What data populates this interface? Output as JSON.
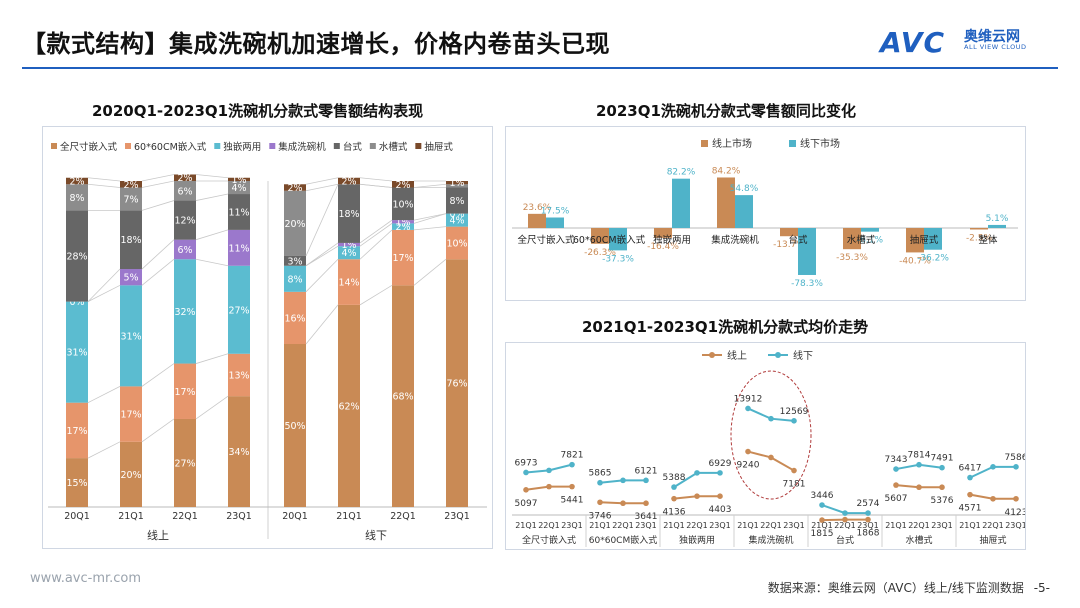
{
  "title": "【款式结构】集成洗碗机加速增长，价格内卷苗头已现",
  "logo": {
    "brand": "AVC",
    "cn": "奥维云网",
    "en": "ALL VIEW CLOUD"
  },
  "footer": {
    "website": "www.avc-mr.com",
    "source": "数据来源：奥维云网（AVC）线上/线下监测数据",
    "page": "-5-"
  },
  "colors": {
    "全尺寸嵌入式": "#c98a55",
    "60*60CM嵌入式": "#e6956b",
    "独嵌两用": "#5bbcd0",
    "集成洗碗机": "#9b78cc",
    "台式": "#666666",
    "水槽式": "#8c8c8c",
    "抽屉式": "#7a4a2a",
    "online": "#c98a55",
    "offline": "#4fb3c9"
  },
  "chart_data": [
    {
      "type": "bar",
      "stacked": true,
      "title": "2020Q1-2023Q1洗碗机分款式零售额结构表现",
      "legend_position": "top",
      "groups": [
        "线上",
        "线下"
      ],
      "categories": [
        "20Q1",
        "21Q1",
        "22Q1",
        "23Q1",
        "20Q1",
        "21Q1",
        "22Q1",
        "23Q1"
      ],
      "series": [
        {
          "name": "全尺寸嵌入式",
          "values": [
            15,
            20,
            27,
            34,
            50,
            62,
            68,
            76
          ]
        },
        {
          "name": "60*60CM嵌入式",
          "values": [
            17,
            17,
            17,
            13,
            16,
            14,
            17,
            10
          ]
        },
        {
          "name": "独嵌两用",
          "values": [
            31,
            31,
            32,
            27,
            8,
            4,
            2,
            4
          ]
        },
        {
          "name": "集成洗碗机",
          "values": [
            0,
            5,
            6,
            11,
            0,
            1,
            1,
            0
          ]
        },
        {
          "name": "台式",
          "values": [
            28,
            18,
            12,
            11,
            3,
            18,
            10,
            8
          ]
        },
        {
          "name": "水槽式",
          "values": [
            8,
            7,
            6,
            4,
            20,
            0,
            0,
            1
          ]
        },
        {
          "name": "抽屉式",
          "values": [
            2,
            2,
            2,
            1,
            2,
            2,
            2,
            1
          ]
        }
      ],
      "labels": [
        [
          "15%",
          "17%",
          "31%",
          "0%",
          "28%",
          "8%",
          "2%"
        ],
        [
          "20%",
          "17%",
          "31%",
          "5%",
          "18%",
          "7%",
          "2%"
        ],
        [
          "27%",
          "17%",
          "32%",
          "6%",
          "12%",
          "6%",
          "2%"
        ],
        [
          "34%",
          "13%",
          "27%",
          "11%",
          "11%",
          "4%",
          "1%"
        ],
        [
          "50%",
          "16%",
          "8%",
          "",
          "3%",
          "20%",
          "2%"
        ],
        [
          "62%",
          "14%",
          "4%",
          "1%",
          "18%",
          "",
          "2%"
        ],
        [
          "68%",
          "17%",
          "2%",
          "1%",
          "10%",
          "",
          "2%"
        ],
        [
          "76%",
          "10%",
          "4%",
          "0%",
          "8%",
          "",
          "1%"
        ]
      ],
      "ylim": [
        0,
        100
      ]
    },
    {
      "type": "bar",
      "title": "2023Q1洗碗机分款式零售额同比变化",
      "legend_position": "top",
      "categories": [
        "全尺寸嵌入式",
        "60*60CM嵌入式",
        "独嵌两用",
        "集成洗碗机",
        "台式",
        "水槽式",
        "抽屉式",
        "整体"
      ],
      "series": [
        {
          "name": "线上市场",
          "values": [
            23.6,
            -26.3,
            -16.4,
            84.2,
            -13.7,
            -35.3,
            -40.7,
            -2.5
          ]
        },
        {
          "name": "线下市场",
          "values": [
            17.5,
            -37.3,
            82.2,
            54.8,
            -78.3,
            -6.1,
            -36.2,
            5.1
          ]
        }
      ],
      "value_labels": {
        "线上市场": [
          "23.6%",
          "-26.3%",
          "-16.4%",
          "84.2%",
          "-13.7%",
          "-35.3%",
          "-40.7%",
          "-2.5%"
        ],
        "线下市场": [
          "17.5%",
          "-37.3%",
          "82.2%",
          "54.8%",
          "-78.3%",
          "-6.1%",
          "-36.2%",
          "5.1%"
        ]
      }
    },
    {
      "type": "line",
      "title": "2021Q1-2023Q1洗碗机分款式均价走势",
      "legend_position": "top",
      "groups": [
        "全尺寸嵌入式",
        "60*60CM嵌入式",
        "独嵌两用",
        "集成洗碗机",
        "台式",
        "水槽式",
        "抽屉式"
      ],
      "x": [
        "21Q1",
        "22Q1",
        "23Q1"
      ],
      "series": [
        {
          "name": "线上",
          "values": [
            [
              5097,
              5441,
              5441
            ],
            [
              3746,
              3641,
              3641
            ],
            [
              4136,
              4403,
              4403
            ],
            [
              9240,
              8600,
              7181
            ],
            [
              1815,
              1868,
              1868
            ],
            [
              5607,
              5376,
              5376
            ],
            [
              4571,
              4123,
              4123
            ]
          ]
        },
        {
          "name": "线下",
          "values": [
            [
              6973,
              7200,
              7821
            ],
            [
              5865,
              6121,
              6121
            ],
            [
              5388,
              6929,
              6929
            ],
            [
              13912,
              12800,
              12569
            ],
            [
              3446,
              2574,
              2574
            ],
            [
              7343,
              7814,
              7491
            ],
            [
              6417,
              7586,
              7586
            ]
          ]
        }
      ],
      "value_labels": {
        "线上": [
          [
            "5097",
            "5441"
          ],
          [
            "3746",
            "3641"
          ],
          [
            "4136",
            "4403"
          ],
          [
            "9240",
            "7181"
          ],
          [
            "1815",
            "1868"
          ],
          [
            "5607",
            "5376"
          ],
          [
            "4571",
            "4123"
          ]
        ],
        "线下": [
          [
            "6973",
            "7821"
          ],
          [
            "5865",
            "6121"
          ],
          [
            "5388",
            "6929"
          ],
          [
            "13912",
            "12569"
          ],
          [
            "3446",
            "2574"
          ],
          [
            "7343",
            "7814",
            "7491"
          ],
          [
            "6417",
            "7586"
          ]
        ]
      }
    }
  ]
}
